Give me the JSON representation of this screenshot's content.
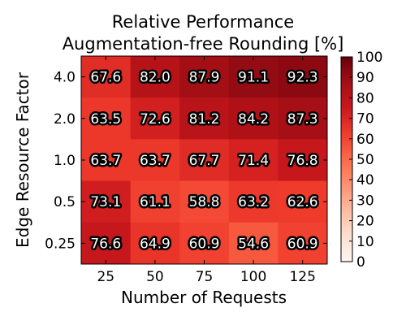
{
  "chart_data": {
    "type": "heatmap",
    "title": [
      "Relative Performance",
      "Augmentation-free Rounding [%]"
    ],
    "xlabel": "Number of Requests",
    "ylabel": "Edge Resource Factor",
    "x_categories": [
      "25",
      "50",
      "75",
      "100",
      "125"
    ],
    "y_categories": [
      "4.0",
      "2.0",
      "1.0",
      "0.5",
      "0.25"
    ],
    "values": [
      [
        67.6,
        82.0,
        87.9,
        91.1,
        92.3
      ],
      [
        63.5,
        72.6,
        81.2,
        84.2,
        87.3
      ],
      [
        63.7,
        63.7,
        67.7,
        71.4,
        76.8
      ],
      [
        73.1,
        61.1,
        58.8,
        63.2,
        62.6
      ],
      [
        76.6,
        64.9,
        60.9,
        54.6,
        60.9
      ]
    ],
    "labels": [
      [
        "67.6",
        "82.0",
        "87.9",
        "91.1",
        "92.3"
      ],
      [
        "63.5",
        "72.6",
        "81.2",
        "84.2",
        "87.3"
      ],
      [
        "63.7",
        "63.7",
        "67.7",
        "71.4",
        "76.8"
      ],
      [
        "73.1",
        "61.1",
        "58.8",
        "63.2",
        "62.6"
      ],
      [
        "76.6",
        "64.9",
        "60.9",
        "54.6",
        "60.9"
      ]
    ],
    "colorbar": {
      "range": [
        0,
        100
      ],
      "ticks": [
        "0",
        "10",
        "20",
        "30",
        "40",
        "50",
        "60",
        "70",
        "80",
        "90",
        "100"
      ],
      "colormap": "Reds"
    },
    "grid": false
  }
}
